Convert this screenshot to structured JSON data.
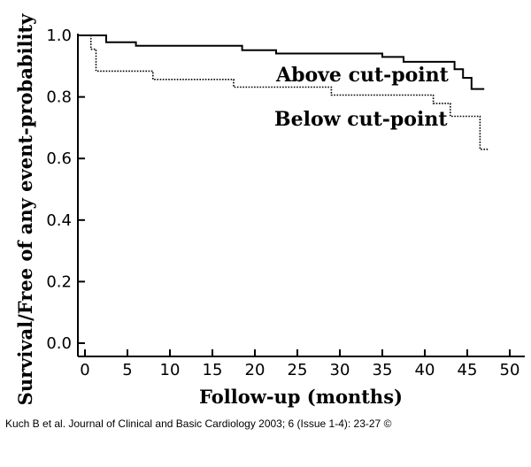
{
  "chart_data": {
    "type": "line",
    "xlabel": "Follow-up (months)",
    "ylabel": "Survival/Free of any event-probability",
    "xlim": [
      0,
      50
    ],
    "ylim": [
      0,
      1.0
    ],
    "x_ticks": [
      "0",
      "5",
      "10",
      "15",
      "20",
      "25",
      "30",
      "35",
      "40",
      "45",
      "50"
    ],
    "y_ticks": [
      "0.0",
      "0.2",
      "0.4",
      "0.6",
      "0.8",
      "1.0"
    ],
    "step": true,
    "series": [
      {
        "name": "Above cut-point",
        "style": "solid",
        "color": "#000000",
        "points": [
          [
            0,
            1.0
          ],
          [
            2.5,
            1.0
          ],
          [
            2.5,
            0.978
          ],
          [
            6,
            0.978
          ],
          [
            6,
            0.966
          ],
          [
            18.5,
            0.966
          ],
          [
            18.5,
            0.952
          ],
          [
            22.5,
            0.952
          ],
          [
            22.5,
            0.941
          ],
          [
            35,
            0.941
          ],
          [
            35,
            0.93
          ],
          [
            37.5,
            0.93
          ],
          [
            37.5,
            0.914
          ],
          [
            43.5,
            0.914
          ],
          [
            43.5,
            0.89
          ],
          [
            44.5,
            0.89
          ],
          [
            44.5,
            0.862
          ],
          [
            45.5,
            0.862
          ],
          [
            45.5,
            0.826
          ],
          [
            47,
            0.826
          ]
        ]
      },
      {
        "name": "Below cut-point",
        "style": "dotted",
        "color": "#000000",
        "points": [
          [
            0,
            1.0
          ],
          [
            0.7,
            1.0
          ],
          [
            0.7,
            0.955
          ],
          [
            1.3,
            0.955
          ],
          [
            1.3,
            0.884
          ],
          [
            8,
            0.884
          ],
          [
            8,
            0.857
          ],
          [
            17.5,
            0.857
          ],
          [
            17.5,
            0.832
          ],
          [
            29,
            0.832
          ],
          [
            29,
            0.806
          ],
          [
            41,
            0.806
          ],
          [
            41,
            0.779
          ],
          [
            43,
            0.779
          ],
          [
            43,
            0.737
          ],
          [
            46.5,
            0.737
          ],
          [
            46.5,
            0.63
          ],
          [
            47.5,
            0.63
          ]
        ]
      }
    ],
    "annotations": [
      "Above cut-point",
      "Below cut-point"
    ]
  },
  "credit": "Kuch B et al. Journal of Clinical and Basic Cardiology 2003; 6 (Issue 1-4): 23-27 ©"
}
